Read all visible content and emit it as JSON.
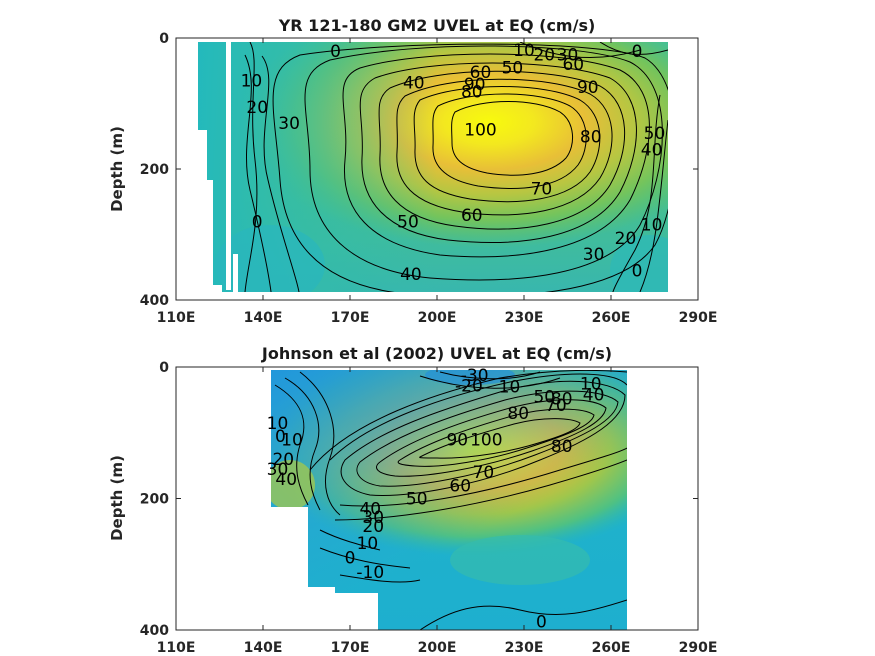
{
  "chart_data": [
    {
      "type": "heatmap",
      "title": "YR 121-180 GM2 UVEL at EQ (cm/s)",
      "xlabel": "",
      "ylabel": "Depth (m)",
      "x_ticks": [
        "110E",
        "140E",
        "170E",
        "200E",
        "230E",
        "260E",
        "290E"
      ],
      "y_ticks": [
        "0",
        "200",
        "400"
      ],
      "xlim": [
        110,
        290
      ],
      "ylim": [
        400,
        0
      ],
      "core": {
        "lon": 225,
        "depth": 110,
        "value": 100
      },
      "contour_labels": [
        {
          "text": "0",
          "lon": 165,
          "depth": 20
        },
        {
          "text": "10",
          "lon": 136,
          "depth": 65
        },
        {
          "text": "20",
          "lon": 138,
          "depth": 105
        },
        {
          "text": "30",
          "lon": 149,
          "depth": 130
        },
        {
          "text": "40",
          "lon": 192,
          "depth": 68
        },
        {
          "text": "50",
          "lon": 190,
          "depth": 280
        },
        {
          "text": "60",
          "lon": 212,
          "depth": 270
        },
        {
          "text": "70",
          "lon": 236,
          "depth": 230
        },
        {
          "text": "80",
          "lon": 253,
          "depth": 150
        },
        {
          "text": "90",
          "lon": 252,
          "depth": 75
        },
        {
          "text": "100",
          "lon": 215,
          "depth": 140
        },
        {
          "text": "40",
          "lon": 191,
          "depth": 360
        },
        {
          "text": "0",
          "lon": 138,
          "depth": 280
        },
        {
          "text": "30",
          "lon": 254,
          "depth": 330
        },
        {
          "text": "20",
          "lon": 265,
          "depth": 305
        },
        {
          "text": "10",
          "lon": 274,
          "depth": 285
        },
        {
          "text": "0",
          "lon": 269,
          "depth": 355
        },
        {
          "text": "50",
          "lon": 275,
          "depth": 145
        },
        {
          "text": "40",
          "lon": 274,
          "depth": 170
        },
        {
          "text": "0",
          "lon": 269,
          "depth": 20
        },
        {
          "text": "10",
          "lon": 230,
          "depth": 18
        },
        {
          "text": "20",
          "lon": 237,
          "depth": 25
        },
        {
          "text": "30",
          "lon": 245,
          "depth": 25
        },
        {
          "text": "60",
          "lon": 247,
          "depth": 40
        },
        {
          "text": "50",
          "lon": 226,
          "depth": 45
        },
        {
          "text": "60",
          "lon": 215,
          "depth": 52
        },
        {
          "text": "90",
          "lon": 213,
          "depth": 70
        },
        {
          "text": "80",
          "lon": 212,
          "depth": 82
        }
      ]
    },
    {
      "type": "heatmap",
      "title": "Johnson et al (2002) UVEL at EQ (cm/s)",
      "xlabel": "",
      "ylabel": "Depth (m)",
      "x_ticks": [
        "110E",
        "140E",
        "170E",
        "200E",
        "230E",
        "260E",
        "290E"
      ],
      "y_ticks": [
        "0",
        "200",
        "400"
      ],
      "xlim": [
        110,
        290
      ],
      "ylim": [
        400,
        0
      ],
      "core": {
        "lon": 232,
        "depth": 95,
        "value": 100
      },
      "contour_labels": [
        {
          "text": "-30",
          "lon": 213,
          "depth": 12
        },
        {
          "text": "-20",
          "lon": 211,
          "depth": 28
        },
        {
          "text": "10",
          "lon": 225,
          "depth": 30
        },
        {
          "text": "50",
          "lon": 237,
          "depth": 45
        },
        {
          "text": "80",
          "lon": 243,
          "depth": 48
        },
        {
          "text": "10",
          "lon": 253,
          "depth": 25
        },
        {
          "text": "40",
          "lon": 254,
          "depth": 42
        },
        {
          "text": "70",
          "lon": 241,
          "depth": 58
        },
        {
          "text": "80",
          "lon": 228,
          "depth": 70
        },
        {
          "text": "90",
          "lon": 207,
          "depth": 110
        },
        {
          "text": "100",
          "lon": 217,
          "depth": 110
        },
        {
          "text": "80",
          "lon": 243,
          "depth": 120
        },
        {
          "text": "70",
          "lon": 216,
          "depth": 160
        },
        {
          "text": "60",
          "lon": 208,
          "depth": 180
        },
        {
          "text": "50",
          "lon": 193,
          "depth": 200
        },
        {
          "text": "10",
          "lon": 145,
          "depth": 85
        },
        {
          "text": "0",
          "lon": 146,
          "depth": 105
        },
        {
          "text": "10",
          "lon": 150,
          "depth": 110
        },
        {
          "text": "20",
          "lon": 147,
          "depth": 140
        },
        {
          "text": "30",
          "lon": 145,
          "depth": 155
        },
        {
          "text": "40",
          "lon": 148,
          "depth": 170
        },
        {
          "text": "40",
          "lon": 177,
          "depth": 215
        },
        {
          "text": "30",
          "lon": 178,
          "depth": 228
        },
        {
          "text": "20",
          "lon": 178,
          "depth": 242
        },
        {
          "text": "10",
          "lon": 176,
          "depth": 268
        },
        {
          "text": "0",
          "lon": 170,
          "depth": 290
        },
        {
          "text": "-10",
          "lon": 177,
          "depth": 312
        },
        {
          "text": "0",
          "lon": 236,
          "depth": 387
        }
      ]
    }
  ]
}
